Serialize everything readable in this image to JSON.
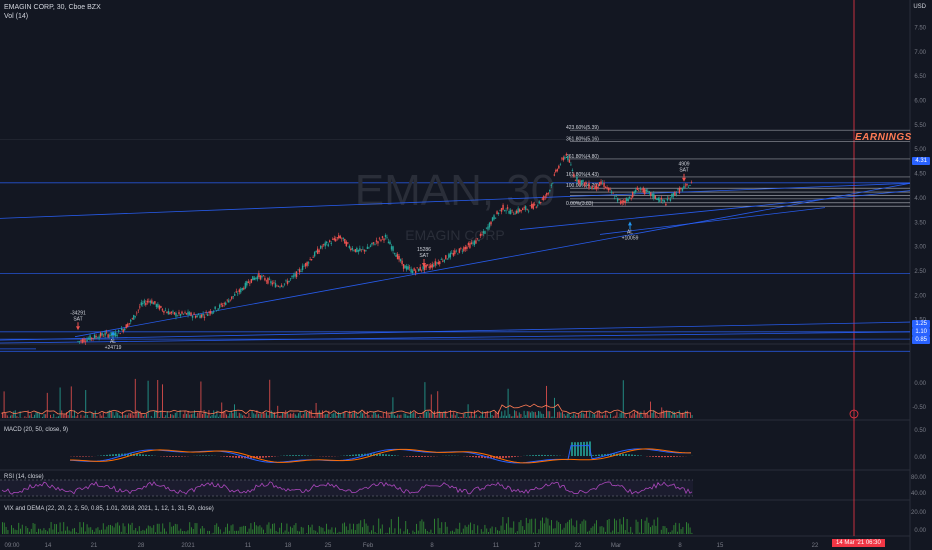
{
  "header": {
    "ticker_line": "EMAGIN CORP, 30, Cboe BZX",
    "volume_label": "Vol (14)",
    "currency": "USD"
  },
  "watermark": {
    "symbol": "EMAN, 30",
    "name": "EMAGIN CORP"
  },
  "annotations": {
    "earnings": "EARNINGS",
    "signals": [
      {
        "text_top": "-34291",
        "text_mid": "SAT",
        "kind": "sell"
      },
      {
        "text_top": "AL",
        "text_mid": "+24719",
        "kind": "buy"
      },
      {
        "text_top": "15286",
        "text_mid": "SAT",
        "kind": "sell"
      },
      {
        "text_top": "AL",
        "text_mid": "+10059",
        "kind": "buy"
      },
      {
        "text_top": "4909",
        "text_mid": "SAT",
        "kind": "sell"
      }
    ],
    "fib_levels": [
      "423.60%(5.39)",
      "361.80%(5.16)",
      "261.80%(4.80)",
      "161.80%(4.43)",
      "100.00%(4.20)",
      "0.00%(3.83)"
    ]
  },
  "panels": {
    "macd": "MACD (20, 50, close, 9)",
    "rsi": "RSI (14, close)",
    "vix": "VIX and DEMA (22, 20, 2, 2, 50, 0.85, 1.01, 2018, 2021, 1, 12, 1, 31, 50, close)"
  },
  "price_badges": [
    {
      "text": "4.31",
      "color": "#2962ff"
    },
    {
      "text": "1.25",
      "color": "#2962ff"
    },
    {
      "text": "1.10",
      "color": "#2962ff"
    },
    {
      "text": "0.85",
      "color": "#2962ff"
    }
  ],
  "date_badge": "14 Mar '21  06:30",
  "chart_data": {
    "type": "line",
    "title": "EMAGIN CORP, 30, Cboe BZX",
    "y_ticks": [
      "7.50",
      "7.00",
      "6.50",
      "6.00",
      "5.50",
      "5.00",
      "4.50",
      "4.00",
      "3.50",
      "3.00",
      "2.50",
      "2.00",
      "1.50"
    ],
    "y_range": [
      1.0,
      7.9
    ],
    "indicator_ticks": {
      "vol": [
        "0.00",
        "-0.50"
      ],
      "macd": [
        "0.50",
        "0.00"
      ],
      "rsi": [
        "80.00",
        "40.00"
      ],
      "vix": [
        "20.00",
        "0.00"
      ]
    },
    "x_ticks": [
      "09:00",
      "14",
      "21",
      "28",
      "2021",
      "11",
      "18",
      "25",
      "Feb",
      "8",
      "11",
      "17",
      "22",
      "Mar",
      "8",
      "15",
      "22"
    ],
    "series": [
      {
        "values": [
          1.05,
          1.1,
          1.15,
          1.2,
          1.18,
          1.3,
          1.5,
          1.8,
          1.9,
          1.75,
          1.65,
          1.6,
          1.62,
          1.58,
          1.6,
          1.7,
          1.8,
          1.95,
          2.1,
          2.3,
          2.4,
          2.3,
          2.2,
          2.25,
          2.4,
          2.6,
          2.8,
          3.0,
          3.1,
          3.2,
          3.0,
          2.9,
          2.95,
          3.1,
          3.2,
          2.9,
          2.6,
          2.5,
          2.55,
          2.6,
          2.7,
          2.8,
          2.9,
          3.0,
          3.1,
          3.3,
          3.6,
          3.8,
          3.7,
          3.75,
          3.8,
          3.9,
          4.1,
          4.6,
          4.9,
          4.4,
          4.3,
          4.2,
          4.3,
          4.1,
          3.9,
          4.0,
          4.2,
          4.1,
          4.0,
          3.9,
          4.1,
          4.2,
          4.3
        ]
      }
    ]
  }
}
